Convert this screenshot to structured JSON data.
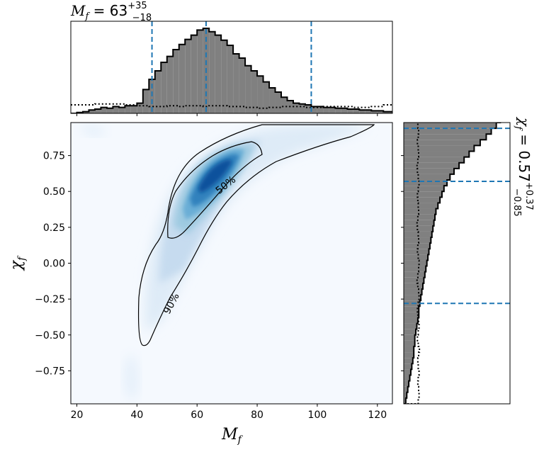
{
  "chart_data": {
    "type": "heatmap",
    "subtype": "corner-plot",
    "top_title": {
      "var": "M",
      "sub": "f",
      "median": "63",
      "plus": "+35",
      "minus": "−18"
    },
    "right_title": {
      "var": "χ",
      "sub": "f",
      "median": "0.57",
      "plus": "+0.37",
      "minus": "−0.85"
    },
    "xlabel": {
      "var": "M",
      "sub": "f"
    },
    "ylabel": {
      "var": "χ",
      "sub": "f"
    },
    "xlim": [
      18,
      125
    ],
    "ylim": [
      -0.98,
      0.98
    ],
    "xticks": [
      {
        "value": 20,
        "label": "20"
      },
      {
        "value": 40,
        "label": "40"
      },
      {
        "value": 60,
        "label": "60"
      },
      {
        "value": 80,
        "label": "80"
      },
      {
        "value": 100,
        "label": "100"
      },
      {
        "value": 120,
        "label": "120"
      }
    ],
    "yticks": [
      {
        "value": 0.75,
        "label": "0.75"
      },
      {
        "value": 0.5,
        "label": "0.50"
      },
      {
        "value": 0.25,
        "label": "0.25"
      },
      {
        "value": 0.0,
        "label": "0.00"
      },
      {
        "value": -0.25,
        "label": "−0.25"
      },
      {
        "value": -0.5,
        "label": "−0.50"
      },
      {
        "value": -0.75,
        "label": "−0.75"
      }
    ],
    "contour_labels": [
      "50%",
      "90%"
    ],
    "mf_quantiles": [
      45,
      63,
      98
    ],
    "chi_quantiles": [
      -0.28,
      0.57,
      0.94
    ],
    "mf_histogram": {
      "bin_start": 18,
      "bin_width": 2,
      "counts": [
        0,
        0.01,
        0.02,
        0.04,
        0.05,
        0.07,
        0.06,
        0.08,
        0.07,
        0.09,
        0.09,
        0.12,
        0.28,
        0.4,
        0.5,
        0.6,
        0.67,
        0.75,
        0.81,
        0.87,
        0.92,
        0.98,
        1.0,
        0.96,
        0.92,
        0.86,
        0.8,
        0.7,
        0.65,
        0.56,
        0.5,
        0.44,
        0.37,
        0.3,
        0.25,
        0.19,
        0.15,
        0.12,
        0.11,
        0.1,
        0.08,
        0.08,
        0.07,
        0.07,
        0.06,
        0.06,
        0.05,
        0.05,
        0.04,
        0.04,
        0.03,
        0.03,
        0.02,
        0.02
      ]
    },
    "mf_prior": [
      0.1,
      0.1,
      0.1,
      0.1,
      0.11,
      0.11,
      0.11,
      0.11,
      0.11,
      0.1,
      0.1,
      0.09,
      0.09,
      0.08,
      0.08,
      0.08,
      0.09,
      0.09,
      0.08,
      0.09,
      0.09,
      0.09,
      0.08,
      0.09,
      0.09,
      0.09,
      0.08,
      0.08,
      0.08,
      0.07,
      0.07,
      0.06,
      0.06,
      0.07,
      0.07,
      0.08,
      0.08,
      0.08,
      0.08,
      0.07,
      0.07,
      0.07,
      0.08,
      0.08,
      0.08,
      0.08,
      0.08,
      0.07,
      0.07,
      0.07,
      0.08,
      0.08,
      0.1,
      0.1
    ],
    "chi_histogram": {
      "bin_start": -0.98,
      "bin_width": 0.04,
      "counts": [
        0.02,
        0.03,
        0.04,
        0.05,
        0.06,
        0.07,
        0.08,
        0.09,
        0.1,
        0.1,
        0.11,
        0.11,
        0.12,
        0.13,
        0.14,
        0.15,
        0.15,
        0.16,
        0.17,
        0.18,
        0.19,
        0.2,
        0.21,
        0.22,
        0.23,
        0.24,
        0.25,
        0.26,
        0.27,
        0.28,
        0.29,
        0.3,
        0.31,
        0.32,
        0.34,
        0.36,
        0.38,
        0.4,
        0.43,
        0.46,
        0.5,
        0.55,
        0.6,
        0.65,
        0.7,
        0.76,
        0.82,
        0.87,
        0.92,
        0.96,
        0.98,
        1.0,
        0.99,
        0.95,
        0.88,
        0.8,
        0.68,
        0.5,
        0.4,
        0.3,
        0.2,
        0.15,
        0.12,
        0.1,
        0.05,
        0.02,
        0.01,
        0.005,
        0.002
      ]
    },
    "chi_prior": [
      0.36,
      0.38,
      0.37,
      0.35,
      0.36,
      0.38,
      0.36,
      0.35,
      0.37,
      0.39,
      0.36,
      0.34,
      0.36,
      0.38,
      0.37,
      0.35,
      0.34,
      0.36,
      0.38,
      0.37,
      0.35,
      0.33,
      0.35,
      0.37,
      0.38,
      0.36,
      0.34,
      0.35,
      0.37,
      0.36,
      0.34,
      0.33,
      0.35,
      0.37,
      0.36,
      0.35,
      0.34,
      0.36,
      0.38,
      0.36,
      0.34,
      0.33,
      0.35,
      0.37,
      0.36,
      0.34,
      0.36,
      0.37,
      0.35,
      0.34,
      0.36,
      0.37,
      0.35,
      0.33,
      0.35,
      0.37,
      0.36,
      0.34,
      0.35,
      0.37,
      0.36,
      0.34,
      0.35,
      0.36,
      0.37,
      0.35,
      0.34,
      0.36,
      0.38
    ],
    "density_mode": {
      "mf": 66,
      "chi": 0.6
    },
    "colors": {
      "hist_fill": "#808080",
      "hist_edge": "#000000",
      "quantile_line": "#1f77b4",
      "density_low": "#f7fbff",
      "density_high": "#08306b",
      "contour": "#000000"
    },
    "grid": false,
    "legend": "none"
  }
}
